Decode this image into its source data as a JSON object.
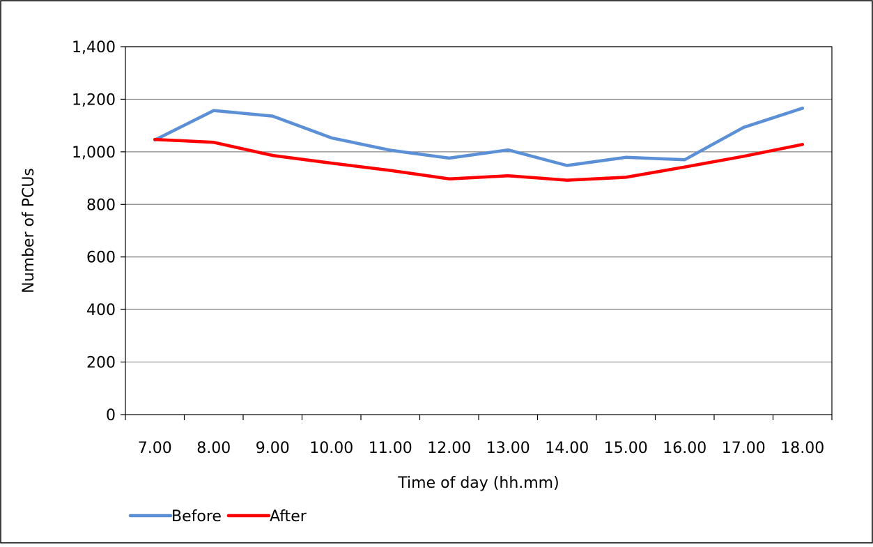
{
  "chart_data": {
    "type": "line",
    "categories": [
      "7.00",
      "8.00",
      "9.00",
      "10.00",
      "11.00",
      "12.00",
      "13.00",
      "14.00",
      "15.00",
      "16.00",
      "17.00",
      "18.00"
    ],
    "series": [
      {
        "name": "Before",
        "color": "#5B8FD6",
        "values": [
          1045,
          1157,
          1136,
          1053,
          1006,
          976,
          1007,
          948,
          979,
          970,
          1093,
          1166
        ]
      },
      {
        "name": "After",
        "color": "#FF0000",
        "values": [
          1047,
          1036,
          986,
          957,
          929,
          897,
          909,
          892,
          903,
          942,
          983,
          1028
        ]
      }
    ],
    "title": "",
    "xlabel": "Time of day (hh.mm)",
    "ylabel": "Number of PCUs",
    "ylim": [
      0,
      1400
    ],
    "yticks": [
      0,
      200,
      400,
      600,
      800,
      1000,
      1200,
      1400
    ],
    "ytick_labels": [
      "0",
      "200",
      "400",
      "600",
      "800",
      "1,000",
      "1,200",
      "1,400"
    ],
    "grid": true,
    "legend_position": "bottom-left"
  }
}
